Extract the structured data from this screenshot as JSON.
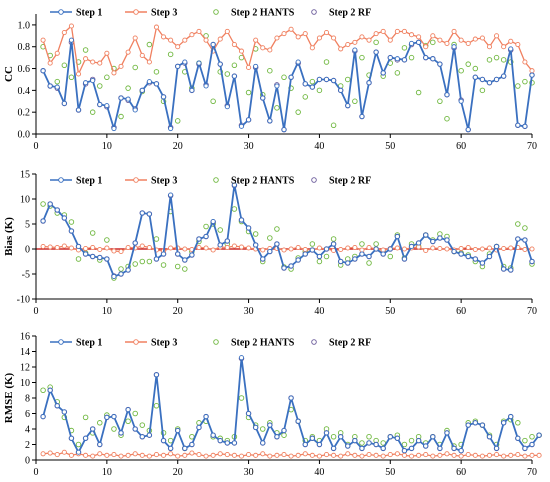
{
  "chart_data": [
    {
      "type": "line",
      "ylabel": "CC",
      "xlim": [
        0,
        70
      ],
      "ylim": [
        0,
        1.1
      ],
      "yticks": [
        "0.0",
        "0.2",
        "0.4",
        "0.6",
        "0.8",
        "1.0"
      ],
      "xticks": [
        "0",
        "10",
        "20",
        "30",
        "40",
        "50",
        "60",
        "70"
      ],
      "grid": false,
      "legend": "top-left",
      "series": [
        {
          "name": "Step 1",
          "color": "#3a70c0",
          "style": "line-circle",
          "values": [
            0.58,
            0.44,
            0.43,
            0.28,
            0.86,
            0.22,
            0.47,
            0.49,
            0.27,
            0.26,
            0.05,
            0.33,
            0.32,
            0.22,
            0.4,
            0.48,
            0.46,
            0.34,
            0.05,
            0.62,
            0.66,
            0.4,
            0.65,
            0.44,
            0.82,
            0.64,
            0.25,
            0.53,
            0.07,
            0.13,
            0.62,
            0.33,
            0.12,
            0.44,
            0.04,
            0.52,
            0.66,
            0.46,
            0.43,
            0.5,
            0.5,
            0.49,
            0.4,
            0.26,
            0.77,
            0.16,
            0.47,
            0.75,
            0.56,
            0.7,
            0.69,
            0.68,
            0.83,
            0.84,
            0.7,
            0.69,
            0.64,
            0.36,
            0.8,
            0.3,
            0.04,
            0.52,
            0.5,
            0.47,
            0.5,
            0.53,
            0.78,
            0.08,
            0.07,
            0.54
          ]
        },
        {
          "name": "Step 3",
          "color": "#f08060",
          "style": "line-circle",
          "values": [
            0.86,
            0.65,
            0.74,
            0.93,
            0.99,
            0.55,
            0.69,
            0.66,
            0.65,
            0.74,
            0.56,
            0.62,
            0.75,
            0.88,
            0.72,
            0.66,
            0.98,
            0.89,
            0.86,
            0.8,
            0.86,
            0.91,
            0.94,
            0.86,
            0.76,
            0.87,
            0.94,
            0.82,
            0.76,
            0.61,
            0.86,
            0.79,
            0.77,
            0.88,
            0.92,
            0.96,
            0.89,
            0.92,
            0.79,
            0.88,
            0.93,
            0.88,
            0.78,
            0.82,
            0.84,
            0.89,
            0.86,
            0.92,
            0.94,
            0.86,
            0.94,
            0.94,
            0.91,
            0.89,
            0.8,
            0.9,
            0.86,
            0.83,
            0.94,
            0.86,
            0.83,
            0.87,
            0.88,
            0.8,
            0.9,
            0.8,
            0.85,
            0.82,
            0.66,
            0.58
          ]
        },
        {
          "name": "Step 2 HANTS",
          "color": "#70b840",
          "style": "marker",
          "values": [
            0.8,
            0.72,
            0.48,
            0.63,
            0.52,
            0.66,
            0.77,
            0.2,
            0.44,
            0.52,
            0.6,
            0.16,
            0.42,
            0.61,
            0.39,
            0.82,
            0.57,
            0.3,
            0.73,
            0.12,
            0.57,
            0.42,
            0.65,
            0.9,
            0.3,
            0.57,
            0.55,
            0.63,
            0.7,
            0.38,
            0.78,
            0.36,
            0.58,
            0.24,
            0.52,
            0.42,
            0.2,
            0.34,
            0.48,
            0.4,
            0.66,
            0.08,
            0.44,
            0.5,
            0.3,
            0.7,
            0.54,
            0.84,
            0.53,
            0.65,
            0.56,
            0.79,
            0.7,
            0.38,
            0.81,
            0.84,
            0.3,
            0.14,
            0.82,
            0.58,
            0.64,
            0.6,
            0.4,
            0.68,
            0.7,
            0.68,
            0.66,
            0.44,
            0.48,
            0.47
          ]
        },
        {
          "name": "Step 2 RF",
          "color": "#6a5a9a",
          "style": "marker",
          "values": [
            0.58,
            0.44,
            0.42,
            0.28,
            0.84,
            0.22,
            0.46,
            0.5,
            0.27,
            0.25,
            0.06,
            0.33,
            0.31,
            0.23,
            0.4,
            0.47,
            0.46,
            0.34,
            0.06,
            0.62,
            0.65,
            0.4,
            0.64,
            0.45,
            0.82,
            0.64,
            0.26,
            0.53,
            0.08,
            0.13,
            0.61,
            0.33,
            0.12,
            0.45,
            0.04,
            0.52,
            0.65,
            0.46,
            0.43,
            0.5,
            0.5,
            0.49,
            0.4,
            0.26,
            0.76,
            0.16,
            0.47,
            0.75,
            0.56,
            0.7,
            0.68,
            0.68,
            0.82,
            0.84,
            0.7,
            0.69,
            0.64,
            0.36,
            0.79,
            0.31,
            0.04,
            0.52,
            0.5,
            0.47,
            0.5,
            0.53,
            0.77,
            0.08,
            0.07,
            0.54
          ]
        }
      ]
    },
    {
      "type": "line",
      "ylabel": "Bias (K)",
      "xlim": [
        0,
        70
      ],
      "ylim": [
        -10,
        15
      ],
      "yticks": [
        "-10",
        "-5",
        "0",
        "5",
        "10",
        "15"
      ],
      "xticks": [
        "0",
        "10",
        "20",
        "30",
        "40",
        "50",
        "60",
        "70"
      ],
      "zero_line_color": "#c00000",
      "grid": false,
      "legend": "top-left",
      "series": [
        {
          "name": "Step 1",
          "color": "#3a70c0",
          "style": "line-circle",
          "values": [
            5.6,
            9.0,
            7.8,
            6.2,
            3.6,
            0.5,
            -1.0,
            -1.5,
            -1.7,
            -2.0,
            -5.5,
            -5.0,
            -4.2,
            1.2,
            7.2,
            7.0,
            -2.0,
            -1.0,
            10.8,
            -1.0,
            -2.2,
            -1.2,
            2.0,
            2.5,
            5.5,
            0.8,
            1.6,
            12.8,
            5.8,
            4.2,
            0.8,
            -2.0,
            -0.5,
            1.0,
            -3.8,
            -3.4,
            -2.2,
            -1.0,
            -0.2,
            -1.5,
            0.0,
            1.0,
            -2.5,
            -2.8,
            -2.0,
            -1.0,
            -1.5,
            0.0,
            -1.0,
            0.0,
            2.5,
            -2.0,
            0.5,
            1.2,
            2.8,
            1.5,
            2.2,
            1.8,
            -0.5,
            -1.0,
            -1.5,
            -2.0,
            -2.8,
            -1.5,
            0.5,
            -4.0,
            -4.2,
            2.0,
            1.8,
            -2.5
          ]
        },
        {
          "name": "Step 3",
          "color": "#f08060",
          "style": "line-circle",
          "values": [
            0.5,
            0.4,
            0.3,
            0.6,
            0.2,
            -0.2,
            0.1,
            0.3,
            -0.1,
            0.2,
            -0.4,
            -0.5,
            0.3,
            0.2,
            0.6,
            0.3,
            -0.2,
            -0.4,
            0.2,
            0.2,
            0.0,
            -0.1,
            0.3,
            0.2,
            -0.2,
            0.4,
            0.3,
            0.6,
            0.4,
            0.2,
            0.0,
            -0.2,
            0.1,
            0.1,
            -0.2,
            0.0,
            0.3,
            -0.1,
            -0.2,
            0.2,
            0.0,
            -0.3,
            -0.1,
            0.2,
            0.3,
            -0.2,
            0.3,
            0.0,
            -0.2,
            0.1,
            0.2,
            0.0,
            0.2,
            0.4,
            -0.3,
            0.2,
            0.1,
            0.0,
            -0.2,
            0.1,
            0.3,
            -0.1,
            0.0,
            0.2,
            -0.2,
            0.1,
            0.2,
            0.3,
            -0.1,
            0.0
          ]
        },
        {
          "name": "Step 2 HANTS",
          "color": "#70b840",
          "style": "marker",
          "values": [
            9.0,
            8.6,
            7.2,
            6.8,
            5.4,
            -2.0,
            -0.8,
            3.2,
            -2.2,
            1.8,
            -5.8,
            -4.0,
            -3.5,
            -3.0,
            -2.5,
            -2.5,
            2.0,
            -3.2,
            7.5,
            -3.5,
            -4.0,
            -0.5,
            1.5,
            4.5,
            5.0,
            3.8,
            1.0,
            8.0,
            5.5,
            3.5,
            3.0,
            -2.5,
            2.2,
            4.0,
            -3.6,
            -4.0,
            -1.8,
            -0.5,
            1.0,
            -2.5,
            -1.5,
            2.0,
            -3.2,
            -2.0,
            -1.5,
            1.0,
            -2.8,
            1.0,
            -0.5,
            -1.5,
            2.8,
            -1.8,
            1.0,
            0.5,
            2.8,
            1.8,
            3.0,
            2.5,
            -0.5,
            -0.8,
            -1.2,
            -2.5,
            -3.5,
            -1.0,
            0.5,
            -3.5,
            -3.8,
            5.0,
            4.2,
            -3.0
          ]
        },
        {
          "name": "Step 2 RF",
          "color": "#6a5a9a",
          "style": "marker",
          "values": [
            5.6,
            9.0,
            7.8,
            6.2,
            3.6,
            0.5,
            -1.0,
            -1.5,
            -1.7,
            -2.0,
            -5.4,
            -5.0,
            -4.2,
            1.2,
            7.2,
            7.0,
            -2.0,
            -1.0,
            10.7,
            -1.0,
            -2.2,
            -1.2,
            2.0,
            2.5,
            5.4,
            0.8,
            1.6,
            12.7,
            5.8,
            4.2,
            0.8,
            -2.0,
            -0.5,
            1.0,
            -3.8,
            -3.4,
            -2.2,
            -1.0,
            -0.2,
            -1.5,
            0.0,
            1.0,
            -2.5,
            -2.8,
            -2.0,
            -1.0,
            -1.5,
            0.0,
            -1.0,
            0.0,
            2.5,
            -2.0,
            0.5,
            1.2,
            2.8,
            1.5,
            2.2,
            1.8,
            -0.5,
            -1.0,
            -1.5,
            -2.0,
            -2.8,
            -1.5,
            0.5,
            -4.0,
            -4.2,
            2.0,
            1.8,
            -2.5
          ]
        }
      ]
    },
    {
      "type": "line",
      "ylabel": "RMSE (K)",
      "xlim": [
        0,
        70
      ],
      "ylim": [
        0,
        16
      ],
      "yticks": [
        "0",
        "2",
        "4",
        "6",
        "8",
        "10",
        "12",
        "14",
        "16"
      ],
      "xticks": [
        "0",
        "10",
        "20",
        "30",
        "40",
        "50",
        "60",
        "70"
      ],
      "grid": false,
      "legend": "top-left",
      "series": [
        {
          "name": "Step 1",
          "color": "#3a70c0",
          "style": "line-circle",
          "values": [
            5.6,
            9.0,
            7.0,
            6.2,
            2.8,
            1.0,
            2.8,
            4.0,
            2.0,
            5.5,
            5.6,
            3.5,
            6.5,
            4.0,
            3.0,
            3.2,
            11.0,
            2.5,
            1.5,
            3.8,
            1.5,
            2.0,
            4.2,
            5.6,
            3.2,
            2.5,
            2.2,
            2.2,
            13.2,
            6.0,
            4.2,
            2.2,
            4.5,
            3.0,
            3.8,
            8.0,
            5.0,
            2.0,
            2.8,
            2.0,
            3.5,
            1.5,
            3.0,
            1.8,
            2.5,
            1.5,
            2.2,
            2.0,
            1.5,
            3.0,
            2.8,
            1.2,
            1.5,
            2.5,
            1.8,
            3.0,
            1.5,
            3.5,
            1.5,
            1.2,
            4.5,
            4.8,
            4.5,
            3.0,
            1.5,
            4.8,
            5.6,
            2.8,
            1.5,
            2.0,
            3.2
          ]
        },
        {
          "name": "Step 3",
          "color": "#f08060",
          "style": "line-circle",
          "values": [
            0.8,
            0.9,
            0.7,
            1.0,
            0.6,
            0.8,
            0.6,
            0.5,
            0.8,
            0.6,
            0.7,
            0.5,
            0.6,
            0.8,
            0.6,
            0.5,
            0.7,
            0.6,
            0.8,
            0.5,
            0.6,
            0.9,
            0.7,
            0.5,
            0.6,
            0.8,
            0.7,
            0.6,
            0.5,
            0.7,
            0.6,
            0.8,
            0.5,
            0.6,
            0.7,
            0.5,
            0.6,
            0.8,
            0.6,
            0.5,
            0.7,
            0.6,
            0.5,
            0.8,
            0.6,
            0.5,
            0.7,
            0.6,
            0.5,
            0.7,
            0.8,
            0.6,
            0.5,
            0.6,
            0.7,
            0.5,
            0.6,
            0.8,
            0.6,
            0.5,
            0.7,
            0.6,
            0.5,
            0.6,
            0.7,
            0.5,
            0.6,
            0.7,
            0.5,
            0.6,
            0.6
          ]
        },
        {
          "name": "Step 2 HANTS",
          "color": "#70b840",
          "style": "marker",
          "values": [
            9.0,
            9.4,
            7.5,
            5.5,
            3.8,
            2.0,
            5.5,
            3.5,
            4.8,
            5.8,
            4.0,
            3.2,
            5.0,
            6.0,
            4.5,
            3.8,
            7.0,
            3.5,
            2.5,
            4.0,
            1.5,
            3.0,
            4.8,
            5.0,
            3.0,
            2.8,
            2.5,
            3.0,
            8.0,
            5.5,
            4.5,
            4.0,
            4.8,
            3.5,
            3.2,
            6.5,
            5.0,
            2.5,
            3.0,
            2.5,
            4.0,
            3.0,
            3.5,
            2.0,
            3.0,
            2.2,
            3.0,
            2.5,
            2.2,
            3.0,
            3.2,
            2.0,
            2.5,
            3.0,
            2.2,
            3.0,
            2.0,
            3.8,
            1.8,
            2.0,
            4.8,
            5.0,
            4.5,
            3.2,
            2.0,
            5.0,
            5.2,
            4.8,
            2.5,
            3.0,
            3.2
          ]
        },
        {
          "name": "Step 2 RF",
          "color": "#6a5a9a",
          "style": "marker",
          "values": [
            5.6,
            9.0,
            7.0,
            6.2,
            2.8,
            1.0,
            2.8,
            4.0,
            2.0,
            5.5,
            5.6,
            3.5,
            6.5,
            4.0,
            3.0,
            3.2,
            11.0,
            2.5,
            1.5,
            3.8,
            1.5,
            2.0,
            4.2,
            5.6,
            3.2,
            2.5,
            2.2,
            2.2,
            13.1,
            6.0,
            4.2,
            2.2,
            4.5,
            3.0,
            3.8,
            8.0,
            5.0,
            2.0,
            2.8,
            2.0,
            3.5,
            1.5,
            3.0,
            1.8,
            2.5,
            1.5,
            2.2,
            2.0,
            1.5,
            3.0,
            2.8,
            1.2,
            1.5,
            2.5,
            1.8,
            3.0,
            1.5,
            3.5,
            1.5,
            1.2,
            4.5,
            4.8,
            4.5,
            3.0,
            1.5,
            4.8,
            5.6,
            2.8,
            1.5,
            2.0,
            3.2
          ]
        }
      ]
    }
  ]
}
